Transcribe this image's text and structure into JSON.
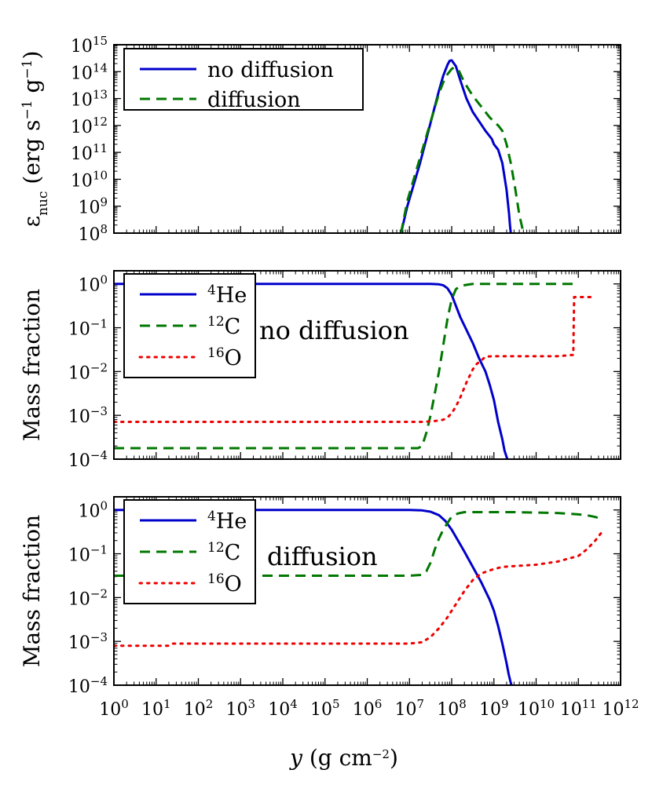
{
  "chart_data": [
    {
      "type": "line",
      "id": "top",
      "xlabel": "",
      "ylabel": "ε_nuc (erg s⁻¹ g⁻¹)",
      "ylabel_main": "ε",
      "ylabel_sub": "nuc",
      "ylabel_rest": " (erg s",
      "ylabel_exp1": "−1",
      "ylabel_mid": " g",
      "ylabel_exp2": "−1",
      "ylabel_end": ")",
      "xscale": "log",
      "yscale": "log",
      "xlim_exp": [
        0,
        12
      ],
      "ylim_exp": [
        8,
        15
      ],
      "ytick_exps": [
        8,
        9,
        10,
        11,
        12,
        13,
        14,
        15
      ],
      "show_xticklabels": false,
      "annotation": "",
      "legend": [
        "no diffusion",
        "diffusion"
      ],
      "series": [
        {
          "name": "no diffusion",
          "color": "#0000cc",
          "style": "solid",
          "log_x": [
            6.8,
            6.95,
            7.1,
            7.25,
            7.4,
            7.55,
            7.7,
            7.8,
            7.9,
            7.95,
            8.0,
            8.1,
            8.2,
            8.35,
            8.5,
            8.65,
            8.8,
            8.95,
            9.0,
            9.1,
            9.2,
            9.3,
            9.36,
            9.38,
            9.4
          ],
          "log_y": [
            8.0,
            9.0,
            9.8,
            10.6,
            11.5,
            12.4,
            13.3,
            13.85,
            14.25,
            14.4,
            14.42,
            14.2,
            13.7,
            13.0,
            12.5,
            12.15,
            11.8,
            11.5,
            11.3,
            11.1,
            10.6,
            9.6,
            8.7,
            8.3,
            8.0
          ]
        },
        {
          "name": "diffusion",
          "color": "#007700",
          "style": "dashed",
          "log_x": [
            6.8,
            6.95,
            7.1,
            7.25,
            7.4,
            7.55,
            7.7,
            7.85,
            8.0,
            8.05,
            8.15,
            8.3,
            8.5,
            8.7,
            8.9,
            9.0,
            9.1,
            9.2,
            9.3,
            9.4,
            9.5,
            9.6,
            9.7
          ],
          "log_y": [
            8.0,
            9.2,
            10.0,
            10.8,
            11.6,
            12.4,
            13.2,
            13.8,
            14.1,
            14.15,
            14.1,
            13.6,
            13.1,
            12.7,
            12.3,
            12.15,
            12.0,
            11.8,
            11.3,
            10.6,
            9.7,
            8.7,
            8.0
          ]
        }
      ]
    },
    {
      "type": "line",
      "id": "middle",
      "xlabel": "",
      "ylabel": "Mass fraction",
      "xscale": "log",
      "yscale": "log",
      "xlim_exp": [
        0,
        12
      ],
      "ylim_exp": [
        -4,
        0.3
      ],
      "ytick_exps": [
        -4,
        -3,
        -2,
        -1,
        0
      ],
      "show_xticklabels": false,
      "annotation": "no diffusion",
      "legend": [
        "4He",
        "12C",
        "16O"
      ],
      "series": [
        {
          "name": "⁴He",
          "color": "#0000cc",
          "style": "solid",
          "log_x": [
            0.0,
            1.0,
            2.0,
            3.0,
            4.0,
            5.0,
            6.0,
            7.0,
            7.5,
            7.7,
            7.8,
            7.9,
            8.0,
            8.1,
            8.2,
            8.35,
            8.5,
            8.65,
            8.8,
            8.9,
            9.0,
            9.05,
            9.1,
            9.2,
            9.25,
            9.3,
            9.32
          ],
          "log_y": [
            0.0,
            0.0,
            0.0,
            0.0,
            0.0,
            0.0,
            0.0,
            0.0,
            0.0,
            -0.01,
            -0.03,
            -0.1,
            -0.25,
            -0.5,
            -0.75,
            -1.05,
            -1.35,
            -1.7,
            -2.0,
            -2.3,
            -2.65,
            -2.9,
            -3.15,
            -3.55,
            -3.8,
            -3.95,
            -4.0
          ]
        },
        {
          "name": "¹²C",
          "color": "#007700",
          "style": "dashed",
          "log_x": [
            0.0,
            1.0,
            2.0,
            3.0,
            4.0,
            5.0,
            6.0,
            7.0,
            7.2,
            7.3,
            7.4,
            7.5,
            7.6,
            7.7,
            7.8,
            7.9,
            8.0,
            8.1,
            8.2,
            8.35,
            8.5,
            9.0,
            9.5,
            10.0,
            10.5,
            11.0
          ],
          "log_y": [
            -3.75,
            -3.75,
            -3.75,
            -3.75,
            -3.75,
            -3.75,
            -3.75,
            -3.75,
            -3.75,
            -3.7,
            -3.4,
            -3.0,
            -2.5,
            -2.0,
            -1.4,
            -0.8,
            -0.35,
            -0.12,
            -0.05,
            -0.02,
            0.0,
            0.0,
            0.0,
            0.0,
            0.0,
            0.0
          ]
        },
        {
          "name": "¹⁶O",
          "color": "#ee0000",
          "style": "dotted",
          "log_x": [
            0.0,
            1.0,
            2.0,
            3.0,
            4.0,
            5.0,
            6.0,
            7.0,
            7.3,
            7.6,
            7.8,
            7.9,
            8.0,
            8.1,
            8.2,
            8.35,
            8.5,
            8.6,
            8.7,
            8.8,
            9.0,
            9.5,
            10.0,
            10.5,
            10.88,
            10.9,
            11.0,
            11.3
          ],
          "log_y": [
            -3.15,
            -3.15,
            -3.15,
            -3.15,
            -3.15,
            -3.15,
            -3.15,
            -3.15,
            -3.15,
            -3.13,
            -3.1,
            -3.05,
            -2.95,
            -2.8,
            -2.6,
            -2.25,
            -1.95,
            -1.82,
            -1.75,
            -1.66,
            -1.65,
            -1.65,
            -1.65,
            -1.65,
            -1.62,
            -0.3,
            -0.3,
            -0.3
          ]
        }
      ]
    },
    {
      "type": "line",
      "id": "bottom",
      "xlabel": "y (g cm⁻²)",
      "xlabel_var": "y",
      "xlabel_rest": " (g cm",
      "xlabel_exp": "−2",
      "xlabel_end": ")",
      "ylabel": "Mass fraction",
      "xscale": "log",
      "yscale": "log",
      "xlim_exp": [
        0,
        12
      ],
      "ylim_exp": [
        -4,
        0.3
      ],
      "ytick_exps": [
        -4,
        -3,
        -2,
        -1,
        0
      ],
      "xtick_exps": [
        0,
        1,
        2,
        3,
        4,
        5,
        6,
        7,
        8,
        9,
        10,
        11,
        12
      ],
      "show_xticklabels": true,
      "annotation": "diffusion",
      "legend": [
        "4He",
        "12C",
        "16O"
      ],
      "series": [
        {
          "name": "⁴He",
          "color": "#0000cc",
          "style": "solid",
          "log_x": [
            0.0,
            1.0,
            2.0,
            3.0,
            4.0,
            5.0,
            6.0,
            7.0,
            7.3,
            7.5,
            7.7,
            7.85,
            8.0,
            8.15,
            8.3,
            8.5,
            8.7,
            8.9,
            9.0,
            9.1,
            9.2,
            9.3,
            9.35,
            9.4,
            9.42
          ],
          "log_y": [
            0.0,
            0.0,
            0.0,
            0.0,
            0.0,
            0.0,
            0.0,
            0.0,
            -0.01,
            -0.04,
            -0.12,
            -0.25,
            -0.45,
            -0.7,
            -0.95,
            -1.3,
            -1.65,
            -2.05,
            -2.3,
            -2.65,
            -3.05,
            -3.5,
            -3.75,
            -3.95,
            -4.0
          ]
        },
        {
          "name": "¹²C",
          "color": "#007700",
          "style": "dashed",
          "log_x": [
            0.0,
            1.0,
            2.0,
            3.0,
            4.0,
            5.0,
            6.0,
            7.0,
            7.3,
            7.4,
            7.5,
            7.6,
            7.7,
            7.8,
            7.9,
            8.0,
            8.15,
            8.3,
            8.5,
            9.0,
            9.5,
            10.0,
            10.5,
            11.0,
            11.2,
            11.4,
            11.6
          ],
          "log_y": [
            -1.5,
            -1.5,
            -1.5,
            -1.5,
            -1.5,
            -1.5,
            -1.5,
            -1.5,
            -1.48,
            -1.4,
            -1.2,
            -0.9,
            -0.65,
            -0.45,
            -0.3,
            -0.15,
            -0.08,
            -0.05,
            -0.05,
            -0.05,
            -0.05,
            -0.06,
            -0.07,
            -0.1,
            -0.12,
            -0.16,
            -0.22
          ]
        },
        {
          "name": "¹⁶O",
          "color": "#ee0000",
          "style": "dotted",
          "log_x": [
            0.0,
            0.5,
            1.0,
            1.3,
            1.4,
            2.0,
            3.0,
            4.0,
            5.0,
            6.0,
            7.0,
            7.3,
            7.5,
            7.7,
            7.9,
            8.1,
            8.3,
            8.5,
            8.7,
            8.9,
            9.0,
            9.2,
            9.5,
            10.0,
            10.5,
            11.0,
            11.2,
            11.4,
            11.6
          ],
          "log_y": [
            -3.1,
            -3.1,
            -3.1,
            -3.1,
            -3.05,
            -3.05,
            -3.05,
            -3.05,
            -3.05,
            -3.05,
            -3.05,
            -3.02,
            -2.9,
            -2.7,
            -2.45,
            -2.15,
            -1.85,
            -1.6,
            -1.45,
            -1.38,
            -1.35,
            -1.3,
            -1.28,
            -1.25,
            -1.18,
            -1.05,
            -0.9,
            -0.7,
            -0.45
          ]
        }
      ]
    }
  ]
}
